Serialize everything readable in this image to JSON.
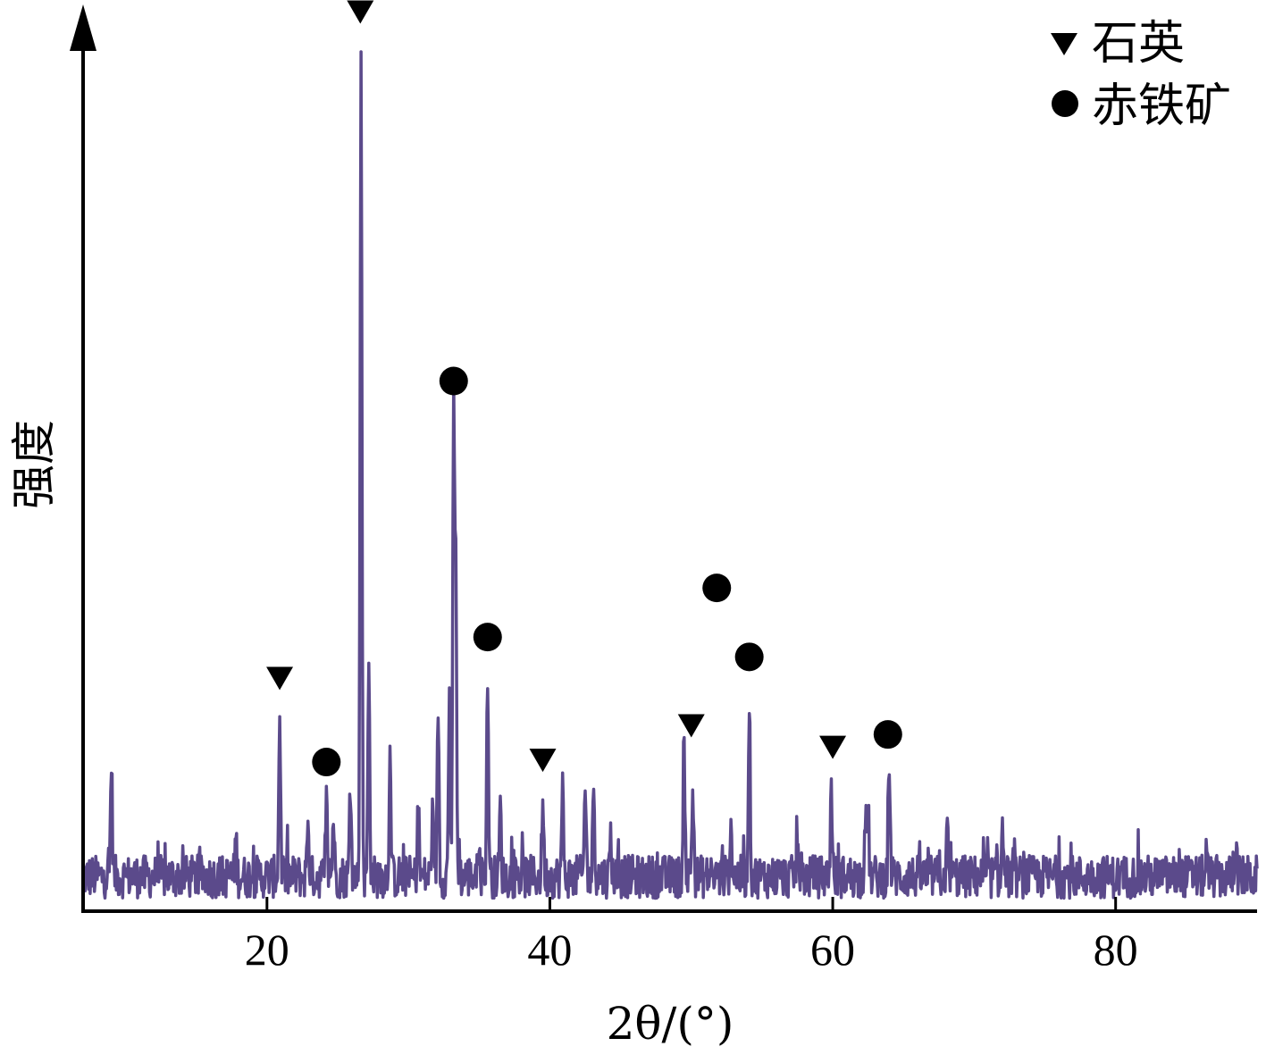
{
  "chart_data": {
    "type": "line",
    "xlabel": "2θ/(°)",
    "ylabel": "强度",
    "xlim": [
      7,
      90
    ],
    "ylim": [
      0,
      100
    ],
    "x_ticks": [
      20,
      40,
      60,
      80
    ],
    "y_ticks": [],
    "grid": false,
    "legend_position": "top-right",
    "line_color": "#5b4a8b",
    "legend": [
      {
        "marker": "triangle-down",
        "label": "石英"
      },
      {
        "marker": "circle",
        "label": "赤铁矿"
      }
    ],
    "series": [
      {
        "color": "#5b4a8b",
        "baseline": 4,
        "noise": 2.5,
        "peaks": [
          {
            "x": 9.0,
            "y": 17.5
          },
          {
            "x": 17.8,
            "y": 8.5
          },
          {
            "x": 20.9,
            "y": 23.0
          },
          {
            "x": 22.9,
            "y": 11.0
          },
          {
            "x": 24.2,
            "y": 13.0
          },
          {
            "x": 24.7,
            "y": 11.0
          },
          {
            "x": 25.9,
            "y": 14.0
          },
          {
            "x": 26.65,
            "y": 99.0
          },
          {
            "x": 27.2,
            "y": 28.0
          },
          {
            "x": 28.7,
            "y": 18.0
          },
          {
            "x": 30.7,
            "y": 12.0
          },
          {
            "x": 31.7,
            "y": 11.0
          },
          {
            "x": 32.1,
            "y": 24.0
          },
          {
            "x": 32.9,
            "y": 25.0
          },
          {
            "x": 33.2,
            "y": 57.5
          },
          {
            "x": 33.35,
            "y": 38.0
          },
          {
            "x": 35.0,
            "y": 9.0
          },
          {
            "x": 35.6,
            "y": 27.0
          },
          {
            "x": 36.5,
            "y": 12.0
          },
          {
            "x": 39.5,
            "y": 13.0
          },
          {
            "x": 40.9,
            "y": 14.0
          },
          {
            "x": 42.5,
            "y": 15.0
          },
          {
            "x": 43.1,
            "y": 15.0
          },
          {
            "x": 44.3,
            "y": 9.0
          },
          {
            "x": 49.5,
            "y": 17.5
          },
          {
            "x": 50.1,
            "y": 14.0
          },
          {
            "x": 52.8,
            "y": 10.5
          },
          {
            "x": 54.1,
            "y": 25.0
          },
          {
            "x": 57.5,
            "y": 9.0
          },
          {
            "x": 59.9,
            "y": 14.5
          },
          {
            "x": 62.3,
            "y": 11.5
          },
          {
            "x": 62.5,
            "y": 12.0
          },
          {
            "x": 64.0,
            "y": 17.0
          },
          {
            "x": 68.1,
            "y": 9.0
          },
          {
            "x": 72.0,
            "y": 9.5
          },
          {
            "x": 86.4,
            "y": 6.5
          },
          {
            "x": 88.5,
            "y": 8.0
          }
        ]
      }
    ],
    "annotations": [
      {
        "marker": "triangle-down",
        "phase": "石英",
        "x": 20.9,
        "y": 27.0
      },
      {
        "marker": "triangle-down",
        "phase": "石英",
        "x": 26.6,
        "y": 104.3
      },
      {
        "marker": "triangle-down",
        "phase": "石英",
        "x": 39.5,
        "y": 17.5
      },
      {
        "marker": "triangle-down",
        "phase": "石英",
        "x": 50.0,
        "y": 21.5
      },
      {
        "marker": "triangle-down",
        "phase": "石英",
        "x": 60.0,
        "y": 19.0
      },
      {
        "marker": "circle",
        "phase": "赤铁矿",
        "x": 24.2,
        "y": 17.3
      },
      {
        "marker": "circle",
        "phase": "赤铁矿",
        "x": 33.2,
        "y": 61.5
      },
      {
        "marker": "circle",
        "phase": "赤铁矿",
        "x": 35.6,
        "y": 31.8
      },
      {
        "marker": "circle",
        "phase": "赤铁矿",
        "x": 51.8,
        "y": 37.5
      },
      {
        "marker": "circle",
        "phase": "赤铁矿",
        "x": 54.1,
        "y": 29.5
      },
      {
        "marker": "circle",
        "phase": "赤铁矿",
        "x": 63.9,
        "y": 20.5
      }
    ]
  }
}
